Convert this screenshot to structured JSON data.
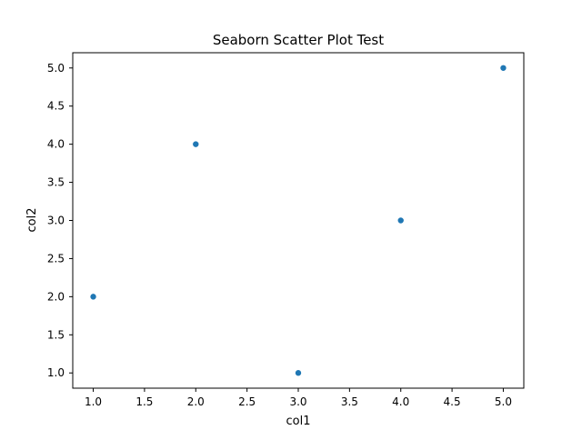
{
  "chart_data": {
    "type": "scatter",
    "title": "Seaborn Scatter Plot Test",
    "xlabel": "col1",
    "ylabel": "col2",
    "x": [
      1,
      2,
      3,
      4,
      5
    ],
    "y": [
      2,
      4,
      1,
      3,
      5
    ],
    "xlim": [
      0.8,
      5.2
    ],
    "ylim": [
      0.8,
      5.2
    ],
    "xticks": [
      "1.0",
      "1.5",
      "2.0",
      "2.5",
      "3.0",
      "3.5",
      "4.0",
      "4.5",
      "5.0"
    ],
    "yticks": [
      "1.0",
      "1.5",
      "2.0",
      "2.5",
      "3.0",
      "3.5",
      "4.0",
      "4.5",
      "5.0"
    ],
    "grid": false,
    "legend": "none",
    "point_color": "#1f77b4"
  }
}
